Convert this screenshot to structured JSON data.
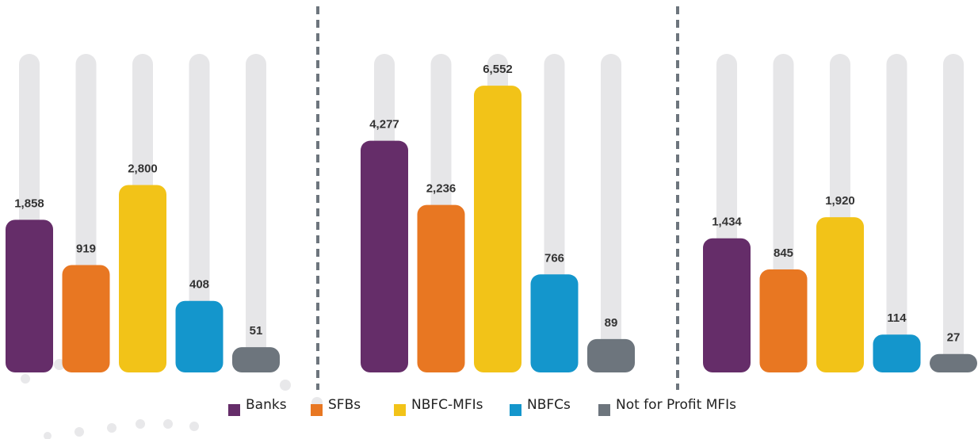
{
  "legend": [
    {
      "name": "Banks",
      "color": "#652d69"
    },
    {
      "name": "SFBs",
      "color": "#e87722"
    },
    {
      "name": "NBFC-MFIs",
      "color": "#f2c318"
    },
    {
      "name": "NBFCs",
      "color": "#1496cc"
    },
    {
      "name": "Not for Profit MFIs",
      "color": "#6d757d"
    }
  ],
  "chart_data": [
    {
      "type": "bar",
      "values": [
        1858,
        919,
        2800,
        408,
        51
      ],
      "value_labels": [
        "1,858",
        "919",
        "2,800",
        "408",
        "51"
      ]
    },
    {
      "type": "bar",
      "values": [
        4277,
        2236,
        6552,
        766,
        89
      ],
      "value_labels": [
        "4,277",
        "2,236",
        "6,552",
        "766",
        "89"
      ]
    },
    {
      "type": "bar",
      "values": [
        1434,
        845,
        1920,
        114,
        27
      ],
      "value_labels": [
        "1,434",
        "845",
        "1,920",
        "114",
        "27"
      ]
    }
  ]
}
